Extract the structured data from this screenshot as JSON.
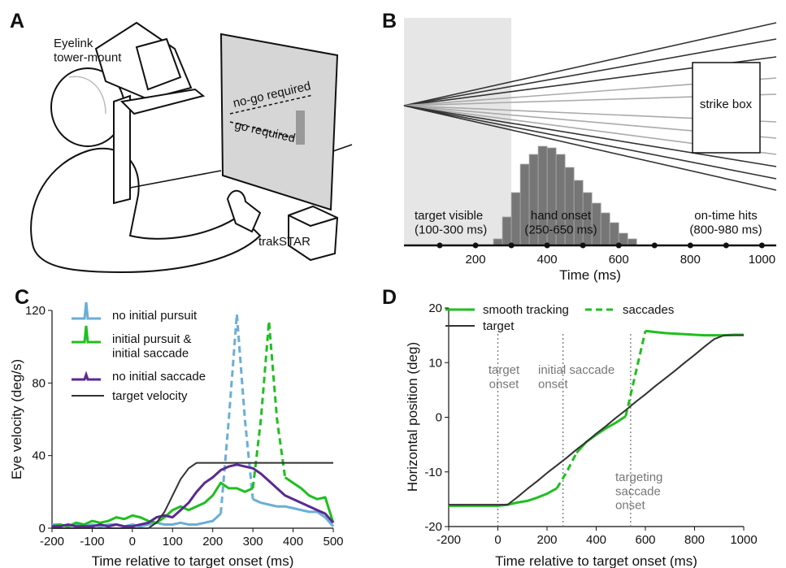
{
  "illustration": {
    "label": "A",
    "eyelink": "Eyelink\ntower-mount",
    "nogo": "no-go required",
    "go": "go required",
    "tracker": "trakSTAR"
  },
  "chart_data": [
    {
      "type": "histogram",
      "label": "B",
      "xlabel": "Time (ms)",
      "bins": [
        250,
        275,
        300,
        325,
        350,
        375,
        400,
        425,
        450,
        475,
        500,
        525,
        550,
        575,
        600,
        625,
        650
      ],
      "counts": [
        8,
        35,
        65,
        100,
        112,
        122,
        120,
        112,
        96,
        80,
        65,
        52,
        40,
        28,
        15,
        8
      ],
      "color": "#767676",
      "xlim": [
        0,
        1040
      ],
      "xticks": [
        200,
        400,
        600,
        800,
        1000
      ],
      "dot_ticks": [
        100,
        200,
        300,
        400,
        500,
        600,
        700,
        800,
        900,
        1000
      ],
      "shaded_xrange": [
        0,
        300
      ],
      "box_label": "strike box",
      "annotations": [
        {
          "text": "target visible\n(100-300 ms)"
        },
        {
          "text": "hand onset\n(250-650 ms)"
        },
        {
          "text": "on-time hits\n(800-980 ms)"
        }
      ]
    },
    {
      "type": "line",
      "label": "C",
      "xlabel": "Time relative to target onset (ms)",
      "ylabel": "Eye velocity (deg/s)",
      "x": [
        -200,
        -180,
        -160,
        -140,
        -120,
        -100,
        -80,
        -60,
        -40,
        -20,
        0,
        20,
        40,
        60,
        80,
        100,
        120,
        140,
        160,
        180,
        200,
        220,
        240,
        260,
        280,
        300,
        320,
        340,
        360,
        380,
        400,
        420,
        440,
        460,
        480,
        500
      ],
      "xlim": [
        -200,
        500
      ],
      "ylim": [
        0,
        120
      ],
      "xticks": [
        -200,
        -100,
        0,
        100,
        200,
        300,
        400,
        500
      ],
      "yticks": [
        0,
        40,
        80,
        120
      ],
      "series": [
        {
          "name": "no initial pursuit",
          "color": "#6aaed6",
          "dashed_ranges": [
            [
              220,
              300
            ]
          ],
          "values": [
            2,
            2,
            1,
            2,
            1,
            2,
            1,
            2,
            2,
            1,
            2,
            1,
            2,
            3,
            2,
            2,
            3,
            2,
            2,
            3,
            4,
            8,
            60,
            118,
            60,
            16,
            14,
            13,
            12,
            12,
            11,
            10,
            9,
            9,
            6,
            1
          ]
        },
        {
          "name": "initial pursuit &\ninitial saccade",
          "color": "#1fbf1f",
          "dashed_ranges": [
            [
              300,
              380
            ]
          ],
          "values": [
            1,
            2,
            1,
            3,
            2,
            4,
            3,
            4,
            6,
            5,
            7,
            6,
            4,
            3,
            6,
            10,
            12,
            10,
            12,
            14,
            18,
            25,
            22,
            22,
            20,
            22,
            60,
            114,
            60,
            28,
            25,
            22,
            18,
            16,
            17,
            3
          ]
        },
        {
          "name": "no initial saccade",
          "color": "#5a2a90",
          "values": [
            1,
            1,
            2,
            1,
            1,
            1,
            2,
            1,
            2,
            1,
            1,
            2,
            3,
            6,
            7,
            6,
            10,
            14,
            20,
            25,
            28,
            32,
            34,
            35,
            34,
            33,
            30,
            26,
            22,
            18,
            16,
            14,
            12,
            10,
            8,
            3
          ]
        },
        {
          "name": "target velocity",
          "color": "#333333",
          "values": [
            0,
            0,
            0,
            0,
            0,
            0,
            0,
            0,
            0,
            0,
            0,
            0,
            0,
            3,
            9,
            18,
            27,
            33,
            36,
            36,
            36,
            36,
            36,
            36,
            36,
            36,
            36,
            36,
            36,
            36,
            36,
            36,
            36,
            36,
            36,
            36
          ]
        }
      ]
    },
    {
      "type": "line",
      "label": "D",
      "xlabel": "Time relative to target onset (ms)",
      "ylabel": "Horizontal position (deg)",
      "x": [
        -200,
        -160,
        -120,
        -80,
        -40,
        0,
        40,
        80,
        120,
        160,
        200,
        240,
        280,
        320,
        360,
        400,
        440,
        480,
        520,
        560,
        600,
        640,
        680,
        720,
        760,
        800,
        840,
        880,
        920,
        960,
        1000
      ],
      "xlim": [
        -200,
        1000
      ],
      "ylim": [
        -20,
        20
      ],
      "xticks": [
        -200,
        0,
        200,
        400,
        600,
        800,
        1000
      ],
      "yticks": [
        -20,
        -10,
        0,
        10,
        20
      ],
      "series": [
        {
          "name": "smooth tracking",
          "color": "#1fbf1f",
          "values": [
            -16.2,
            -16.2,
            -16.2,
            -16.2,
            -16.2,
            -16.2,
            -16,
            -15.6,
            -15.3,
            -14.7,
            -14,
            -13,
            null,
            -6.5,
            -4.5,
            -3.2,
            -2,
            -1,
            0.2,
            null,
            15.8,
            15.6,
            15.4,
            15.3,
            15.2,
            15.1,
            15,
            15,
            15,
            15.1,
            15.1
          ]
        },
        {
          "name": "saccades",
          "color": "#1fbf1f",
          "dashed": true,
          "values": [
            null,
            null,
            null,
            null,
            null,
            null,
            null,
            null,
            null,
            null,
            null,
            -13,
            -10,
            -6.5,
            null,
            null,
            null,
            null,
            0.2,
            8,
            15.8,
            null,
            null,
            null,
            null,
            null,
            null,
            null,
            null,
            null,
            null
          ]
        },
        {
          "name": "target",
          "color": "#333333",
          "values": [
            -16,
            -16,
            -16,
            -16,
            -16,
            -16,
            -16,
            -14.6,
            -13.1,
            -11.7,
            -10.2,
            -8.8,
            -7.4,
            -5.9,
            -4.5,
            -3,
            -1.6,
            -0.1,
            1.3,
            2.8,
            4.2,
            5.7,
            7.1,
            8.5,
            10,
            11.4,
            12.9,
            14.3,
            15,
            15,
            15
          ]
        }
      ],
      "annotations": [
        {
          "x": 0,
          "text": "target\nonset"
        },
        {
          "x": 265,
          "text": "initial saccade\nonset"
        },
        {
          "x": 540,
          "text": "targeting\nsaccade\nonset"
        }
      ]
    }
  ]
}
